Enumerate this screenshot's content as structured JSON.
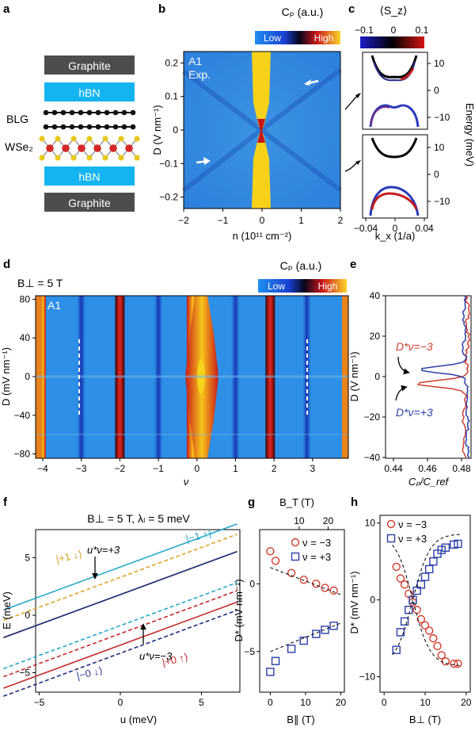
{
  "panels": {
    "a": {
      "letter": "a",
      "layers": [
        "Graphite",
        "hBN",
        "BLG",
        "WSe₂",
        "hBN",
        "Graphite"
      ]
    },
    "b": {
      "letter": "b",
      "colorbar_title": "Cₚ (a.u.)",
      "colorbar_low": "Low",
      "colorbar_high": "High",
      "sample_label": "A1",
      "sample_sub": "Exp.",
      "xlabel": "n (10¹¹ cm⁻²)",
      "ylabel": "D (V nm⁻¹)",
      "xticks": [
        "−2",
        "−1",
        "0",
        "1",
        "2"
      ],
      "yticks": [
        "0.2",
        "0.1",
        "0",
        "−0.1",
        "−0.2"
      ]
    },
    "c": {
      "letter": "c",
      "colorbar_title": "⟨S_z⟩",
      "colorbar_ticks": [
        "−0.1",
        "0",
        "0.1"
      ],
      "xlabel": "k_x (1/a)",
      "ylabel": "Energy (meV)",
      "xticks": [
        "−0.04",
        "0",
        "0.04"
      ],
      "yticks_top": [
        "10",
        "0",
        "−10"
      ],
      "yticks_bottom": [
        "10",
        "0",
        "−10"
      ]
    },
    "d": {
      "letter": "d",
      "field_label": "B⊥ = 5 T",
      "sample_label": "A1",
      "colorbar_title": "Cₚ (a.u.)",
      "colorbar_low": "Low",
      "colorbar_high": "High",
      "xlabel": "ν",
      "ylabel": "D (mV nm⁻¹)",
      "xticks": [
        "−4",
        "−3",
        "−2",
        "−1",
        "0",
        "1",
        "2",
        "3"
      ],
      "yticks": [
        "80",
        "40",
        "0",
        "−40",
        "−80"
      ]
    },
    "e": {
      "letter": "e",
      "xlabel": "Cₚ/C_ref",
      "ylabel": "D (V nm⁻¹)",
      "xticks": [
        "0.44",
        "0.46",
        "0.48"
      ],
      "yticks": [
        "40",
        "20",
        "0",
        "−20",
        "−40"
      ],
      "label_red": "D*ν=−3",
      "label_blue": "D*ν=+3"
    },
    "f": {
      "letter": "f",
      "title": "B⊥ = 5 T, λₗ = 5 meV",
      "xlabel": "u (meV)",
      "ylabel": "E (meV)",
      "xticks": [
        "−5",
        "0",
        "5"
      ],
      "yticks": [
        "5",
        "0",
        "−5"
      ],
      "labels": [
        "|+1 ↓⟩",
        "|−1 ↑⟩",
        "|−0 ↓⟩",
        "|+0 ↑⟩",
        "u*ν=+3",
        "u*ν=−3"
      ]
    },
    "g": {
      "letter": "g",
      "top_xlabel": "B_T (T)",
      "xlabel": "B∥ (T)",
      "ylabel": "D* (mV nm⁻¹)",
      "xticks": [
        "0",
        "10",
        "20"
      ],
      "top_xticks": [
        "10",
        "20"
      ],
      "yticks": [
        "0",
        "−5"
      ],
      "legend": [
        "ν = −3",
        "ν = +3"
      ]
    },
    "h": {
      "letter": "h",
      "xlabel": "B⊥ (T)",
      "ylabel": "D* (mV nm⁻¹)",
      "xticks": [
        "0",
        "10",
        "20"
      ],
      "yticks": [
        "10",
        "0",
        "−10"
      ],
      "legend": [
        "ν = −3",
        "ν = +3"
      ]
    }
  },
  "colors": {
    "cmap_low": "#2a7de1",
    "cmap_mid": "#0a0a2a",
    "cmap_high": "#f7d21a",
    "red_series": "#d23c2e",
    "blue_series": "#2c3fa8",
    "layer_graphite": "#4d4d4d",
    "layer_hbn": "#14b4f0"
  },
  "chart_data": [
    {
      "type": "scatter",
      "title": "",
      "panel": "g",
      "xlabel": "B∥ (T)",
      "ylabel": "D* (mV nm⁻¹)",
      "xlim": [
        -3,
        21
      ],
      "ylim": [
        -8,
        4
      ],
      "series": [
        {
          "name": "ν = −3",
          "x": [
            0,
            1.5,
            6,
            9.5,
            13,
            15.5,
            18
          ],
          "y": [
            2.4,
            1.7,
            0.8,
            0.3,
            0.0,
            -0.3,
            -0.5
          ]
        },
        {
          "name": "ν = +3",
          "x": [
            0,
            1.5,
            6,
            9.5,
            13,
            15.5,
            18
          ],
          "y": [
            -6.5,
            -5.7,
            -4.8,
            -4.2,
            -3.7,
            -3.4,
            -3.1
          ]
        }
      ]
    },
    {
      "type": "scatter",
      "title": "",
      "panel": "h",
      "xlabel": "B⊥ (T)",
      "ylabel": "D* (mV nm⁻¹)",
      "xlim": [
        -1,
        21
      ],
      "ylim": [
        -12,
        11
      ],
      "series": [
        {
          "name": "ν = −3",
          "x": [
            3,
            4,
            5,
            6,
            7,
            8,
            9,
            10,
            11,
            12,
            13,
            14,
            15,
            17,
            18
          ],
          "y": [
            4.3,
            2.8,
            2.0,
            0.8,
            -0.3,
            -1.3,
            -2.5,
            -3.3,
            -4.0,
            -5.0,
            -6.0,
            -7.2,
            -8.0,
            -8.3,
            -8.3
          ]
        },
        {
          "name": "ν = +3",
          "x": [
            3,
            4,
            5,
            6,
            7,
            8,
            9,
            10,
            11,
            12,
            13,
            14,
            15,
            17,
            18
          ],
          "y": [
            -6.5,
            -4.2,
            -2.8,
            -1.3,
            0.0,
            1.2,
            2.0,
            3.0,
            4.0,
            5.0,
            6.0,
            6.5,
            6.8,
            7.2,
            7.3
          ]
        }
      ]
    }
  ]
}
